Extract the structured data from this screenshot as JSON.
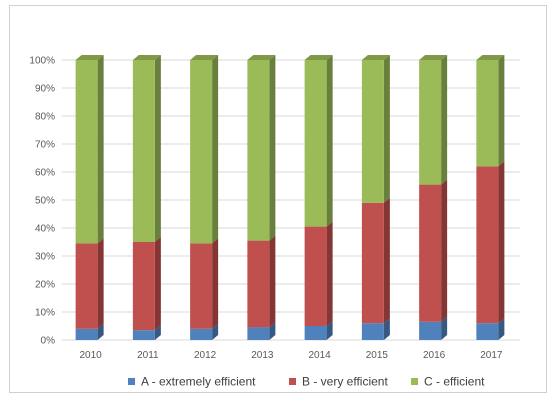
{
  "chart_data": {
    "type": "bar",
    "stacked": true,
    "style": "3d-stacked-column",
    "categories": [
      "2010",
      "2011",
      "2012",
      "2013",
      "2014",
      "2015",
      "2016",
      "2017"
    ],
    "series": [
      {
        "name": "A - extremely efficient",
        "color": "#4f81bd",
        "values": [
          4,
          3.5,
          4,
          4.5,
          5,
          6,
          6.5,
          6
        ]
      },
      {
        "name": "B - very efficient",
        "color": "#c0504d",
        "values": [
          30.5,
          31.5,
          30.5,
          31,
          35.5,
          43,
          49,
          56
        ]
      },
      {
        "name": "C - efficient",
        "color": "#9bbb59",
        "values": [
          65.5,
          65,
          65.5,
          64.5,
          59.5,
          51,
          44.5,
          38
        ]
      }
    ],
    "yticks": [
      "0%",
      "10%",
      "20%",
      "30%",
      "40%",
      "50%",
      "60%",
      "70%",
      "80%",
      "90%",
      "100%"
    ],
    "ylim": [
      0,
      100
    ],
    "grid": true,
    "legend_position": "bottom"
  }
}
